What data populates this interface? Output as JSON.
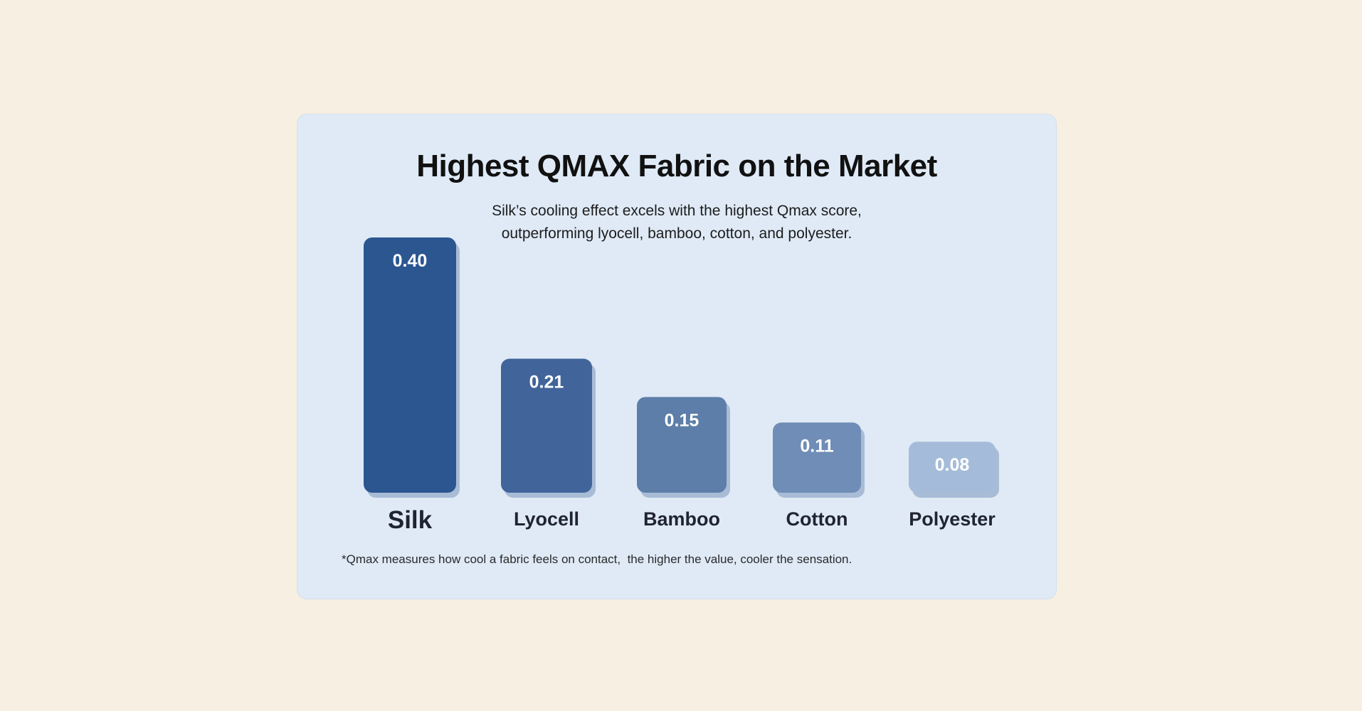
{
  "chart_data": {
    "type": "bar",
    "title": "Highest QMAX Fabric on the Market",
    "subtitle_lines": [
      "Silk’s cooling effect excels with the highest Qmax score,",
      "outperforming lyocell, bamboo, cotton, and polyester."
    ],
    "categories": [
      "Silk",
      "Lyocell",
      "Bamboo",
      "Cotton",
      "Polyester"
    ],
    "values": [
      0.4,
      0.21,
      0.15,
      0.11,
      0.08
    ],
    "value_labels": [
      "0.40",
      "0.21",
      "0.15",
      "0.11",
      "0.08"
    ],
    "xlabel": "",
    "ylabel": "",
    "grid": false,
    "bar_colors": [
      "#2b5690",
      "#41659a",
      "#5d7ea9",
      "#6f8db6",
      "#a4bcd9"
    ],
    "footnote": "*Qmax measures how cool a fabric feels on contact,  the higher the value, cooler the sensation."
  }
}
